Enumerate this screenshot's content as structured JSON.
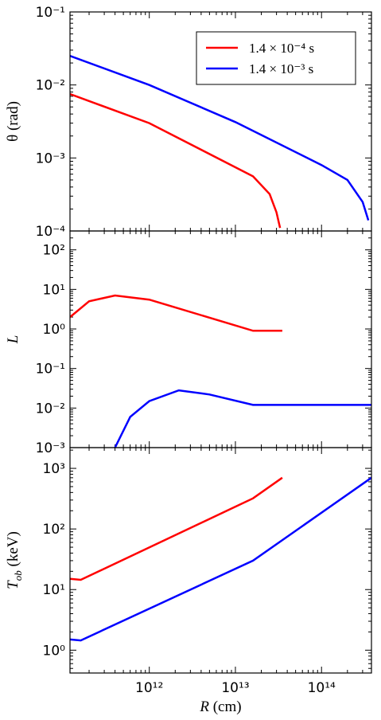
{
  "chart_data": [
    {
      "type": "line",
      "ylabel": "θ (rad)",
      "log_x": true,
      "log_y": true,
      "legend": "upper right",
      "xlim": [
        120000000000.0,
        380000000000000.0
      ],
      "ylim": [
        0.0001,
        0.1
      ],
      "xticks": [
        1000000000000.0,
        10000000000000.0,
        100000000000000.0
      ],
      "yticks": [
        {
          "value": 0.0001,
          "label": "10⁻⁴"
        },
        {
          "value": 0.001,
          "label": "10⁻³"
        },
        {
          "value": 0.01,
          "label": "10⁻²"
        },
        {
          "value": 0.1,
          "label": "10⁻¹"
        }
      ],
      "series": [
        {
          "name": "1.4 × 10⁻⁴ s",
          "color": "#ff0000",
          "x": [
            120000000000.0,
            1000000000000.0,
            16000000000000.0,
            25000000000000.0,
            30000000000000.0,
            33000000000000.0
          ],
          "values": [
            0.0075,
            0.003,
            0.00056,
            0.00032,
            0.00018,
            0.00011
          ]
        },
        {
          "name": "1.4 × 10⁻³ s",
          "color": "#0000ff",
          "x": [
            120000000000.0,
            1000000000000.0,
            10000000000000.0,
            100000000000000.0,
            200000000000000.0,
            300000000000000.0,
            350000000000000.0
          ],
          "values": [
            0.025,
            0.01,
            0.0031,
            0.0008,
            0.0005,
            0.00025,
            0.00014
          ]
        }
      ]
    },
    {
      "type": "line",
      "ylabel": "L",
      "log_x": true,
      "log_y": true,
      "xlim": [
        120000000000.0,
        380000000000000.0
      ],
      "ylim": [
        0.001,
        300
      ],
      "xticks": [
        1000000000000.0,
        10000000000000.0,
        100000000000000.0
      ],
      "yticks": [
        {
          "value": 0.001,
          "label": "10⁻³"
        },
        {
          "value": 0.01,
          "label": "10⁻²"
        },
        {
          "value": 0.1,
          "label": "10⁻¹"
        },
        {
          "value": 1,
          "label": "10⁰"
        },
        {
          "value": 10,
          "label": "10¹"
        },
        {
          "value": 100,
          "label": "10²"
        }
      ],
      "series": [
        {
          "color": "#ff0000",
          "x": [
            120000000000.0,
            200000000000.0,
            400000000000.0,
            1000000000000.0,
            16000000000000.0,
            35000000000000.0
          ],
          "values": [
            2,
            5,
            7,
            5.5,
            0.9,
            0.9
          ]
        },
        {
          "color": "#0000ff",
          "x": [
            400000000000.0,
            600000000000.0,
            1000000000000.0,
            2200000000000.0,
            5000000000000.0,
            16000000000000.0,
            380000000000000.0
          ],
          "values": [
            0.001,
            0.006,
            0.015,
            0.028,
            0.022,
            0.012,
            0.012
          ]
        }
      ]
    },
    {
      "type": "line",
      "ylabel": "T",
      "ylabel_sub": "ob",
      "ylabel_unit": " (keV)",
      "xlabel": "R",
      "xlabel_unit": " (cm)",
      "log_x": true,
      "log_y": true,
      "xlim": [
        120000000000.0,
        380000000000000.0
      ],
      "ylim": [
        0.42,
        2200
      ],
      "xticks": [
        {
          "value": 1000000000000.0,
          "label": "10¹²"
        },
        {
          "value": 10000000000000.0,
          "label": "10¹³"
        },
        {
          "value": 100000000000000.0,
          "label": "10¹⁴"
        }
      ],
      "yticks": [
        {
          "value": 1,
          "label": "10⁰"
        },
        {
          "value": 10,
          "label": "10¹"
        },
        {
          "value": 100,
          "label": "10²"
        },
        {
          "value": 1000,
          "label": "10³"
        }
      ],
      "series": [
        {
          "color": "#ff0000",
          "x": [
            120000000000.0,
            160000000000.0,
            16000000000000.0,
            35000000000000.0
          ],
          "values": [
            15,
            14.5,
            320,
            700
          ]
        },
        {
          "color": "#0000ff",
          "x": [
            120000000000.0,
            160000000000.0,
            16000000000000.0,
            380000000000000.0
          ],
          "values": [
            1.5,
            1.45,
            30,
            700
          ]
        }
      ]
    }
  ]
}
